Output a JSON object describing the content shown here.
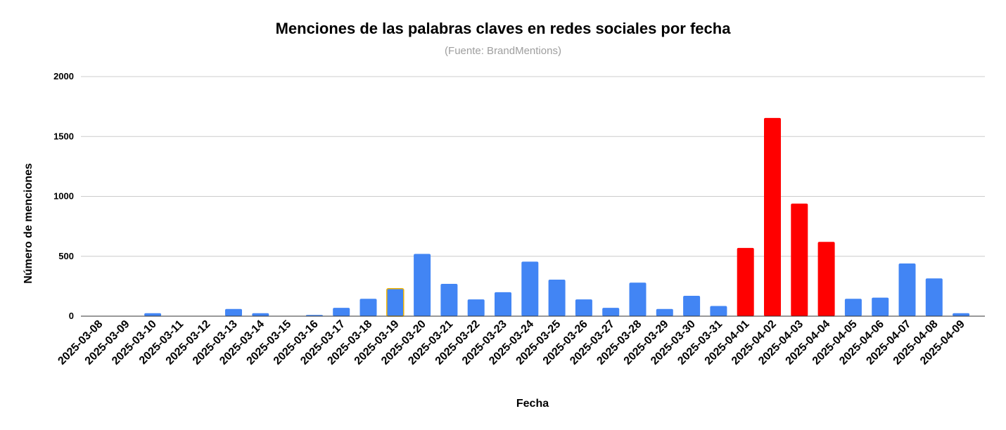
{
  "chart_data": {
    "type": "bar",
    "title": "Menciones de las palabras claves en redes sociales por fecha",
    "subtitle": "(Fuente: BrandMentions)",
    "xlabel": "Fecha",
    "ylabel": "Número de menciones",
    "ylim": [
      0,
      2000
    ],
    "yticks": [
      0,
      500,
      1000,
      1500,
      2000
    ],
    "grid": true,
    "legend": "none",
    "colors": {
      "default": "#4285f4",
      "highlight": "#ff0000",
      "outline_selected": "#f4b400"
    },
    "categories": [
      "2025-03-08",
      "2025-03-09",
      "2025-03-10",
      "2025-03-11",
      "2025-03-12",
      "2025-03-13",
      "2025-03-14",
      "2025-03-15",
      "2025-03-16",
      "2025-03-17",
      "2025-03-18",
      "2025-03-19",
      "2025-03-20",
      "2025-03-21",
      "2025-03-22",
      "2025-03-23",
      "2025-03-24",
      "2025-03-25",
      "2025-03-26",
      "2025-03-27",
      "2025-03-28",
      "2025-03-29",
      "2025-03-30",
      "2025-03-31",
      "2025-04-01",
      "2025-04-02",
      "2025-04-03",
      "2025-04-04",
      "2025-04-05",
      "2025-04-06",
      "2025-04-07",
      "2025-04-08",
      "2025-04-09"
    ],
    "values": [
      3,
      3,
      25,
      3,
      3,
      60,
      25,
      3,
      10,
      70,
      145,
      230,
      520,
      270,
      140,
      200,
      455,
      305,
      140,
      70,
      280,
      60,
      170,
      85,
      570,
      1655,
      940,
      620,
      145,
      155,
      440,
      315,
      25
    ],
    "bar_colors": [
      "default",
      "default",
      "default",
      "default",
      "default",
      "default",
      "default",
      "default",
      "default",
      "default",
      "default",
      "default",
      "default",
      "default",
      "default",
      "default",
      "default",
      "default",
      "default",
      "default",
      "default",
      "default",
      "default",
      "default",
      "highlight",
      "highlight",
      "highlight",
      "highlight",
      "default",
      "default",
      "default",
      "default",
      "default"
    ],
    "selected_index": 11
  }
}
